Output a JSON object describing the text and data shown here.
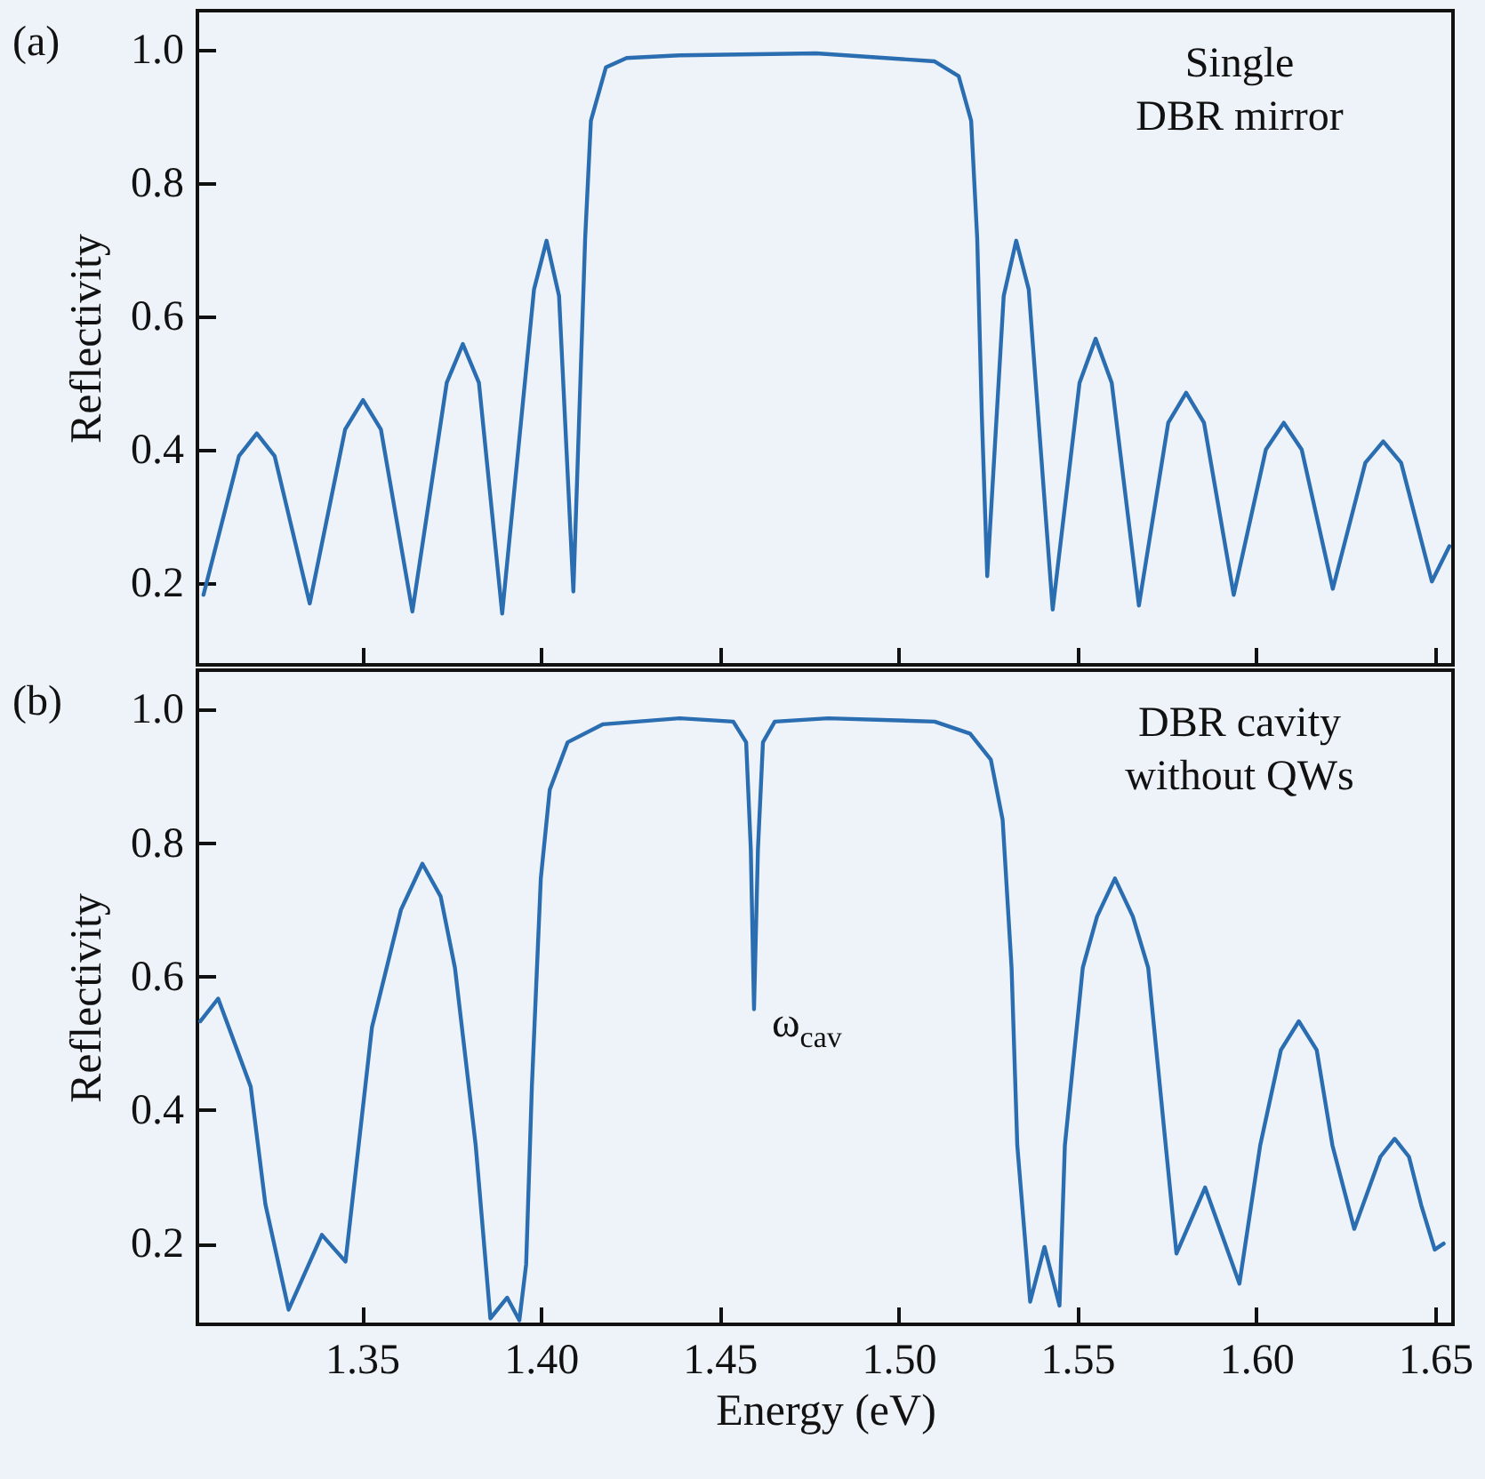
{
  "chart_data": [
    {
      "type": "line",
      "title": "(a)",
      "ylabel": "Reflectivity",
      "color": "#2a6db0",
      "tick_labels": "y",
      "annotations": [
        "Single\nDBR mirror"
      ],
      "xlim": [
        1.304,
        1.655
      ],
      "ylim": [
        0.077,
        1.058
      ],
      "xticks": [
        1.35,
        1.4,
        1.45,
        1.5,
        1.55,
        1.6,
        1.65
      ],
      "yticks": [
        0.2,
        0.4,
        0.6,
        0.8,
        {
          "value": 1,
          "label": "1.0"
        }
      ],
      "x": [
        1.3057,
        1.3156,
        1.3206,
        1.3256,
        1.3354,
        1.3453,
        1.3503,
        1.3553,
        1.3641,
        1.3737,
        1.3782,
        1.3827,
        1.3892,
        1.3981,
        1.4016,
        1.4051,
        1.4091,
        1.4124,
        1.414,
        1.4182,
        1.424,
        1.4389,
        1.477,
        1.5101,
        1.5168,
        1.5203,
        1.522,
        1.5233,
        1.5248,
        1.5294,
        1.5329,
        1.5364,
        1.5431,
        1.5506,
        1.5551,
        1.5596,
        1.5672,
        1.5754,
        1.5804,
        1.5854,
        1.5937,
        1.6027,
        1.6077,
        1.6127,
        1.6214,
        1.6305,
        1.6355,
        1.6405,
        1.6491,
        1.654
      ],
      "values": [
        0.182,
        0.39,
        0.424,
        0.39,
        0.169,
        0.43,
        0.474,
        0.43,
        0.157,
        0.5,
        0.558,
        0.5,
        0.154,
        0.64,
        0.713,
        0.63,
        0.187,
        0.717,
        0.893,
        0.973,
        0.987,
        0.991,
        0.994,
        0.982,
        0.96,
        0.893,
        0.716,
        0.449,
        0.21,
        0.63,
        0.713,
        0.64,
        0.16,
        0.5,
        0.566,
        0.5,
        0.166,
        0.44,
        0.485,
        0.44,
        0.182,
        0.4,
        0.44,
        0.4,
        0.191,
        0.38,
        0.412,
        0.38,
        0.202,
        0.255
      ]
    },
    {
      "type": "line",
      "title": "(b)",
      "xlabel": "Energy (eV)",
      "ylabel": "Reflectivity",
      "color": "#2a6db0",
      "annotations": [
        "DBR cavity\nwithout QWs",
        {
          "text": "ω$_{cav}$",
          "x": 1.4596,
          "y": 0.551
        }
      ],
      "xlim": [
        1.304,
        1.655
      ],
      "ylim": [
        0.079,
        1.059
      ],
      "xticks": [
        1.35,
        {
          "value": 1.4,
          "label": "1.40"
        },
        1.45,
        {
          "value": 1.5,
          "label": "1.50"
        },
        1.55,
        {
          "value": 1.6,
          "label": "1.60"
        },
        1.65
      ],
      "yticks": [
        0.2,
        0.4,
        0.6,
        0.8,
        {
          "value": 1,
          "label": "1.0"
        }
      ],
      "x": [
        1.3048,
        1.3098,
        1.3189,
        1.323,
        1.3295,
        1.3388,
        1.3454,
        1.3528,
        1.3609,
        1.3669,
        1.372,
        1.376,
        1.3818,
        1.3859,
        1.3906,
        1.394,
        1.3959,
        1.3975,
        1.4,
        1.4025,
        1.4075,
        1.4174,
        1.4389,
        1.4538,
        1.4574,
        1.4587,
        1.4596,
        1.4607,
        1.4621,
        1.4654,
        1.4803,
        1.5101,
        1.52,
        1.5258,
        1.5291,
        1.5316,
        1.5332,
        1.5368,
        1.5408,
        1.545,
        1.5465,
        1.5515,
        1.5555,
        1.5605,
        1.5655,
        1.5698,
        1.5747,
        1.5777,
        1.5857,
        1.5953,
        1.6011,
        1.6069,
        1.6119,
        1.6169,
        1.6213,
        1.6274,
        1.6347,
        1.6387,
        1.6427,
        1.6461,
        1.6499,
        1.6524
      ],
      "values": [
        0.533,
        0.567,
        0.435,
        0.259,
        0.101,
        0.213,
        0.173,
        0.524,
        0.7,
        0.769,
        0.72,
        0.613,
        0.347,
        0.088,
        0.119,
        0.085,
        0.169,
        0.435,
        0.747,
        0.88,
        0.951,
        0.978,
        0.987,
        0.982,
        0.951,
        0.791,
        0.551,
        0.791,
        0.951,
        0.982,
        0.987,
        0.982,
        0.964,
        0.925,
        0.835,
        0.613,
        0.347,
        0.113,
        0.195,
        0.107,
        0.347,
        0.613,
        0.69,
        0.747,
        0.69,
        0.613,
        0.347,
        0.185,
        0.284,
        0.14,
        0.347,
        0.49,
        0.533,
        0.49,
        0.347,
        0.222,
        0.33,
        0.357,
        0.33,
        0.258,
        0.191,
        0.2
      ]
    }
  ]
}
